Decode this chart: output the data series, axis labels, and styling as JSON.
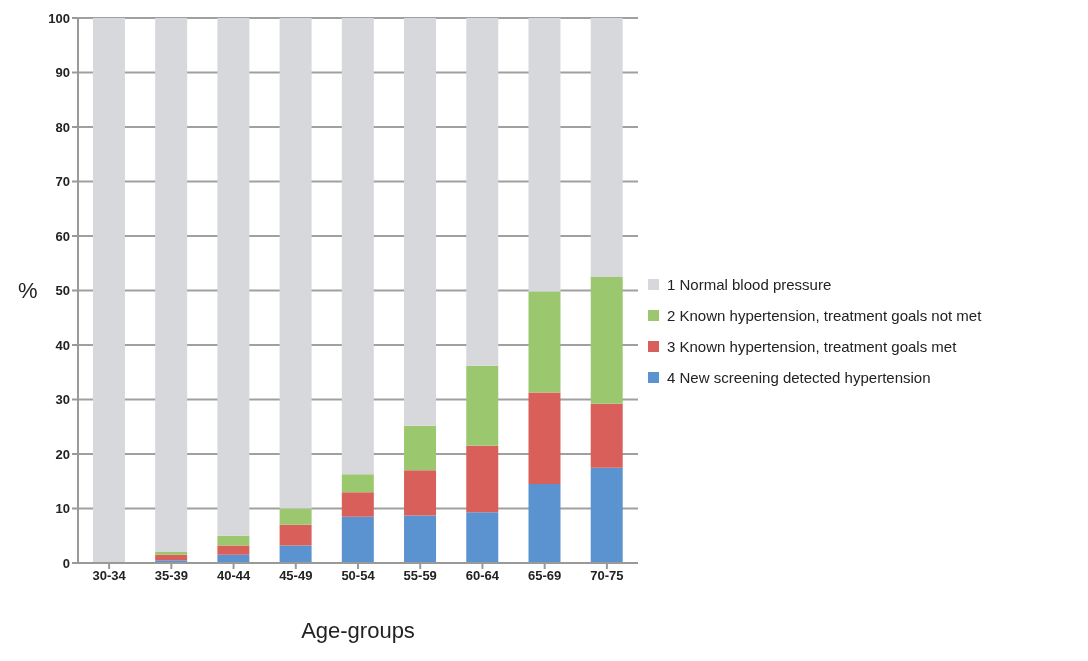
{
  "chart_data": {
    "type": "bar",
    "stacked": true,
    "xlabel": "Age-groups",
    "ylabel": "%",
    "categories": [
      "30-34",
      "35-39",
      "40-44",
      "45-49",
      "50-54",
      "55-59",
      "60-64",
      "65-69",
      "70-75"
    ],
    "series": [
      {
        "name": "4 New screening detected hypertension",
        "color": "#5b93d0",
        "values": [
          0,
          0.5,
          1.5,
          3.2,
          8.5,
          8.7,
          9.3,
          14.5,
          17.5
        ]
      },
      {
        "name": "3 Known hypertension, treatment goals met",
        "color": "#d9605a",
        "values": [
          0,
          1,
          1.7,
          3.8,
          4.5,
          8.3,
          12.2,
          16.8,
          11.7
        ]
      },
      {
        "name": "2 Known hypertension, treatment goals not met",
        "color": "#9bc86e",
        "values": [
          0,
          0.5,
          1.8,
          3,
          3.3,
          8.2,
          14.7,
          18.5,
          23.3
        ]
      },
      {
        "name": "1 Normal blood pressure",
        "color": "#d7d8dc",
        "values": [
          100,
          98,
          95,
          90,
          83.7,
          74.8,
          63.8,
          50.2,
          47.5
        ]
      }
    ],
    "ylim": [
      0,
      100
    ],
    "yticks": [
      0,
      10,
      20,
      30,
      40,
      50,
      60,
      70,
      80,
      90,
      100
    ],
    "grid": "y",
    "legend": "right"
  }
}
